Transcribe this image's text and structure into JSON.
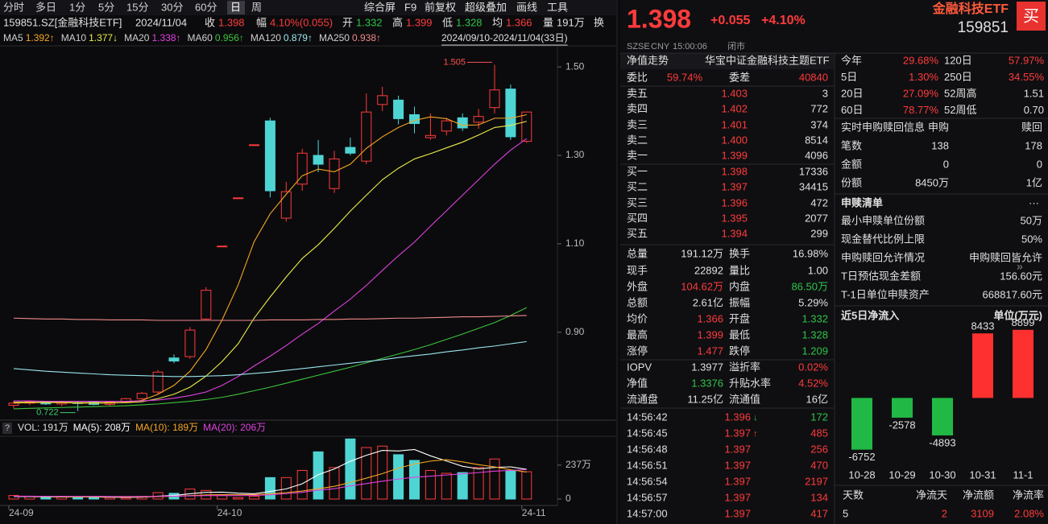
{
  "toolbar": {
    "tabs": [
      "分时",
      "多日",
      "1分",
      "5分",
      "15分",
      "30分",
      "60分",
      "日",
      "周"
    ],
    "active": "日",
    "tools": [
      "综合屏",
      "F9",
      "前复权",
      "超级叠加",
      "画线",
      "工具"
    ]
  },
  "quote_bar": {
    "code": "159851.SZ[金融科技ETF]",
    "date": "2024/11/04",
    "fields": [
      {
        "label": "收",
        "value": "1.398",
        "color": "#ff3b3b"
      },
      {
        "label": "幅",
        "value": "4.10%(0.055)",
        "color": "#ff3b3b"
      },
      {
        "label": "开",
        "value": "1.332",
        "color": "#2fc447"
      },
      {
        "label": "高",
        "value": "1.399",
        "color": "#ff3b3b"
      },
      {
        "label": "低",
        "value": "1.328",
        "color": "#2fc447"
      },
      {
        "label": "均",
        "value": "1.366",
        "color": "#ff3b3b"
      },
      {
        "label": "量",
        "value": "191万",
        "color": "#e0e0e0"
      },
      {
        "label": "换"
      }
    ]
  },
  "range": "2024/09/10-2024/11/04(33日)",
  "chart_data": [
    {
      "type": "candlestick",
      "categories": [
        "24-09",
        null,
        null,
        null,
        null,
        null,
        null,
        null,
        null,
        null,
        null,
        null,
        null,
        "24-10",
        null,
        null,
        null,
        null,
        null,
        null,
        null,
        null,
        null,
        null,
        null,
        null,
        null,
        null,
        null,
        null,
        null,
        null,
        "24-11"
      ],
      "open": [
        0.735,
        0.74,
        0.743,
        0.738,
        0.741,
        0.742,
        0.737,
        0.743,
        0.75,
        0.765,
        0.842,
        0.845,
        0.93,
        1.095,
        1.204,
        1.324,
        1.378,
        1.158,
        1.235,
        1.3,
        1.225,
        1.318,
        1.287,
        1.415,
        1.425,
        1.392,
        1.34,
        1.355,
        1.385,
        1.375,
        1.408,
        1.45,
        1.332
      ],
      "high": [
        0.745,
        0.746,
        0.745,
        0.744,
        0.745,
        0.744,
        0.745,
        0.752,
        0.765,
        0.815,
        0.85,
        0.912,
        1.002,
        1.095,
        1.204,
        1.324,
        1.385,
        1.24,
        1.315,
        1.335,
        1.31,
        1.34,
        1.44,
        1.455,
        1.435,
        1.41,
        1.395,
        1.385,
        1.395,
        1.405,
        1.505,
        1.46,
        1.399
      ],
      "low": [
        0.728,
        0.735,
        0.736,
        0.733,
        0.722,
        0.735,
        0.734,
        0.74,
        0.748,
        0.76,
        0.83,
        0.84,
        0.928,
        1.095,
        1.204,
        1.324,
        1.205,
        1.15,
        1.22,
        1.262,
        1.215,
        1.3,
        1.28,
        1.4,
        1.37,
        1.35,
        1.335,
        1.345,
        1.355,
        1.36,
        1.395,
        1.335,
        1.328
      ],
      "close": [
        0.74,
        0.743,
        0.738,
        0.741,
        0.739,
        0.737,
        0.743,
        0.75,
        0.762,
        0.81,
        0.835,
        0.905,
        0.995,
        1.095,
        1.204,
        1.324,
        1.22,
        1.218,
        1.305,
        1.28,
        1.292,
        1.305,
        1.398,
        1.435,
        1.383,
        1.372,
        1.345,
        1.378,
        1.362,
        1.388,
        1.448,
        1.342,
        1.398
      ],
      "up_color": "#ff3b3b",
      "down_color": "#4fd4d4",
      "ylim": [
        0.705,
        1.533
      ],
      "yticks": [
        {
          "value": 1.5,
          "label": "1.50"
        },
        {
          "value": 1.3,
          "label": "1.30"
        },
        {
          "value": 1.1,
          "label": "1.10"
        },
        {
          "value": 0.9,
          "label": "0.90"
        }
      ],
      "series": [
        {
          "name": "MA5",
          "label": "1.392↑",
          "color": "#f5a623",
          "values": [
            0.74,
            0.741,
            0.741,
            0.741,
            0.74,
            0.74,
            0.74,
            0.742,
            0.746,
            0.76,
            0.78,
            0.812,
            0.861,
            0.928,
            1.007,
            1.105,
            1.168,
            1.212,
            1.254,
            1.269,
            1.263,
            1.28,
            1.316,
            1.342,
            1.363,
            1.379,
            1.387,
            1.383,
            1.368,
            1.369,
            1.384,
            1.384,
            1.392
          ]
        },
        {
          "name": "MA10",
          "label": "1.377↓",
          "color": "#ecec4a",
          "values": [
            0.742,
            0.742,
            0.742,
            0.742,
            0.741,
            0.741,
            0.741,
            0.741,
            0.743,
            0.75,
            0.76,
            0.776,
            0.801,
            0.834,
            0.874,
            0.932,
            0.98,
            1.025,
            1.067,
            1.098,
            1.135,
            1.174,
            1.21,
            1.245,
            1.271,
            1.292,
            1.304,
            1.317,
            1.33,
            1.346,
            1.363,
            1.368,
            1.377
          ]
        },
        {
          "name": "MA20",
          "label": "1.338↑",
          "color": "#e040e0",
          "values": [
            0.745,
            0.745,
            0.744,
            0.744,
            0.744,
            0.744,
            0.744,
            0.744,
            0.745,
            0.747,
            0.751,
            0.757,
            0.765,
            0.78,
            0.8,
            0.824,
            0.846,
            0.87,
            0.896,
            0.92,
            0.948,
            0.975,
            1.006,
            1.04,
            1.073,
            1.104,
            1.14,
            1.175,
            1.21,
            1.245,
            1.28,
            1.312,
            1.338
          ]
        },
        {
          "name": "MA60",
          "label": "0.956↑",
          "color": "#3cc43c",
          "values": [
            0.727,
            0.728,
            0.729,
            0.73,
            0.731,
            0.732,
            0.733,
            0.734,
            0.736,
            0.738,
            0.741,
            0.744,
            0.748,
            0.753,
            0.76,
            0.768,
            0.776,
            0.785,
            0.794,
            0.803,
            0.812,
            0.821,
            0.831,
            0.841,
            0.851,
            0.861,
            0.872,
            0.884,
            0.896,
            0.909,
            0.922,
            0.938,
            0.956
          ]
        },
        {
          "name": "MA120",
          "label": "0.879↑",
          "color": "#9ae6ec",
          "values": [
            0.818,
            0.815,
            0.812,
            0.81,
            0.808,
            0.806,
            0.804,
            0.803,
            0.802,
            0.801,
            0.8,
            0.8,
            0.801,
            0.802,
            0.804,
            0.807,
            0.81,
            0.814,
            0.818,
            0.822,
            0.826,
            0.83,
            0.834,
            0.838,
            0.843,
            0.847,
            0.851,
            0.856,
            0.86,
            0.865,
            0.869,
            0.874,
            0.879
          ]
        },
        {
          "name": "MA250",
          "label": "0.938↑",
          "color": "#f08a8a",
          "values": [
            0.932,
            0.931,
            0.93,
            0.93,
            0.929,
            0.929,
            0.928,
            0.928,
            0.928,
            0.927,
            0.927,
            0.927,
            0.927,
            0.927,
            0.927,
            0.927,
            0.928,
            0.928,
            0.928,
            0.929,
            0.929,
            0.93,
            0.93,
            0.931,
            0.932,
            0.932,
            0.933,
            0.934,
            0.935,
            0.935,
            0.936,
            0.937,
            0.938
          ]
        }
      ]
    },
    {
      "type": "bar",
      "ylim": [
        0,
        450
      ],
      "yticks": [
        0,
        {
          "value": 237,
          "label": "237万"
        }
      ],
      "series": [
        {
          "name": "VOL: 191万",
          "values": [
            25,
            18,
            12,
            15,
            10,
            14,
            12,
            10,
            18,
            45,
            40,
            70,
            60,
            25,
            10,
            20,
            150,
            150,
            200,
            330,
            220,
            420,
            360,
            370,
            310,
            270,
            200,
            180,
            185,
            220,
            280,
            200,
            191
          ]
        },
        {
          "name": "MA(5): 208万",
          "color": "#ffffff",
          "values": [
            18,
            17,
            16,
            15,
            16,
            14,
            13,
            12,
            13,
            20,
            25,
            37,
            47,
            48,
            41,
            37,
            53,
            71,
            107,
            170,
            210,
            264,
            306,
            340,
            336,
            346,
            302,
            266,
            229,
            211,
            221,
            225,
            208
          ]
        },
        {
          "name": "MA(10): 189万",
          "color": "#f5a623",
          "values": [
            20,
            19,
            18,
            17,
            16,
            16,
            16,
            15,
            15,
            17,
            19,
            24,
            29,
            31,
            31,
            31,
            37,
            45,
            56,
            72,
            89,
            116,
            146,
            178,
            216,
            245,
            265,
            275,
            260,
            240,
            225,
            205,
            189
          ]
        },
        {
          "name": "MA(20): 206万",
          "color": "#e040e0",
          "values": [
            20,
            20,
            19,
            19,
            19,
            19,
            18,
            18,
            18,
            19,
            20,
            22,
            24,
            24,
            24,
            25,
            30,
            38,
            47,
            62,
            72,
            92,
            108,
            125,
            140,
            152,
            160,
            168,
            176,
            185,
            195,
            200,
            206
          ]
        }
      ]
    },
    {
      "type": "bar",
      "title": "近5日净流入",
      "subtitle": "单位(万元)",
      "categories": [
        "10-28",
        "10-29",
        "10-30",
        "10-31",
        "11-1"
      ],
      "values": [
        -6752,
        -2578,
        -4893,
        8433,
        8899
      ],
      "up_color": "#ff3030",
      "down_color": "#22b845",
      "ylim": [
        -9000,
        9400
      ]
    }
  ],
  "quote": {
    "price": "1.398",
    "change": "+0.055",
    "change_pct": "+4.10%",
    "market": "SZSE",
    "currency": "CNY",
    "time": "15:00:06",
    "status": "闭市",
    "name": "金融科技ETF",
    "code": "159851",
    "buy": "买"
  },
  "order_book": {
    "nav_label": "净值走势",
    "fund_name": "华宝中证金融科技主题ETF",
    "ratio_label": "委比",
    "ratio": "59.74%",
    "diff_label": "委差",
    "diff": "40840",
    "asks": [
      [
        "卖五",
        "1.403",
        "3"
      ],
      [
        "卖四",
        "1.402",
        "772"
      ],
      [
        "卖三",
        "1.401",
        "374"
      ],
      [
        "卖二",
        "1.400",
        "8514"
      ],
      [
        "卖一",
        "1.399",
        "4096"
      ]
    ],
    "bids": [
      [
        "买一",
        "1.398",
        "17336"
      ],
      [
        "买二",
        "1.397",
        "34415"
      ],
      [
        "买三",
        "1.396",
        "472"
      ],
      [
        "买四",
        "1.395",
        "2077"
      ],
      [
        "买五",
        "1.394",
        "299"
      ]
    ]
  },
  "stats": [
    [
      "总量",
      "191.12万",
      "换手",
      "16.98%"
    ],
    [
      "现手",
      "22892",
      "量比",
      "1.00"
    ],
    [
      "外盘",
      "104.62万",
      "内盘",
      "86.50万"
    ],
    [
      "总额",
      "2.61亿",
      "振幅",
      "5.29%"
    ],
    [
      "均价",
      "1.366",
      "开盘",
      "1.332"
    ],
    [
      "最高",
      "1.399",
      "最低",
      "1.328"
    ],
    [
      "涨停",
      "1.477",
      "跌停",
      "1.209"
    ],
    [
      "IOPV",
      "1.3977",
      "溢折率",
      "0.02%"
    ],
    [
      "净值",
      "1.3376",
      "升贴水率",
      "4.52%"
    ],
    [
      "流通盘",
      "11.25亿",
      "流通值",
      "16亿"
    ]
  ],
  "ticks": [
    {
      "time": "14:56:42",
      "price": "1.396",
      "flag": "↓",
      "volume": "172"
    },
    {
      "time": "14:56:45",
      "price": "1.397",
      "flag": "↑",
      "volume": "485"
    },
    {
      "time": "14:56:48",
      "price": "1.397",
      "volume": "256"
    },
    {
      "time": "14:56:51",
      "price": "1.397",
      "volume": "470"
    },
    {
      "time": "14:56:54",
      "price": "1.397",
      "volume": "2197"
    },
    {
      "time": "14:56:57",
      "price": "1.397",
      "volume": "134"
    },
    {
      "time": "14:57:00",
      "price": "1.397",
      "volume": "417"
    }
  ],
  "performance": [
    [
      "今年",
      "29.68%",
      "120日",
      "57.97%"
    ],
    [
      "5日",
      "1.30%",
      "250日",
      "34.55%"
    ],
    [
      "20日",
      "27.09%",
      "52周高",
      "1.51"
    ],
    [
      "60日",
      "78.77%",
      "52周低",
      "0.70"
    ]
  ],
  "creation": {
    "title": "实时申购赎回信息",
    "columns": [
      "申购",
      "赎回"
    ],
    "rows": [
      [
        "笔数",
        "138",
        "178"
      ],
      [
        "金额",
        "0",
        "0"
      ],
      [
        "份额",
        "8450万",
        "1亿"
      ]
    ]
  },
  "basket": {
    "title": "申赎清单",
    "more": "···",
    "rows": [
      [
        "最小申赎单位份额",
        "50万"
      ],
      [
        "现金替代比例上限",
        "50%"
      ],
      [
        "申购赎回允许情况",
        "申购赎回皆允许"
      ],
      [
        "T日预估现金差额",
        "156.60元"
      ],
      [
        "T-1日单位申赎资产",
        "668817.60元"
      ]
    ]
  },
  "flow_summary": {
    "columns": [
      "天数",
      "净流天",
      "净流额",
      "净流率"
    ],
    "values": [
      "5",
      "2",
      "3109",
      "2.08%"
    ]
  }
}
